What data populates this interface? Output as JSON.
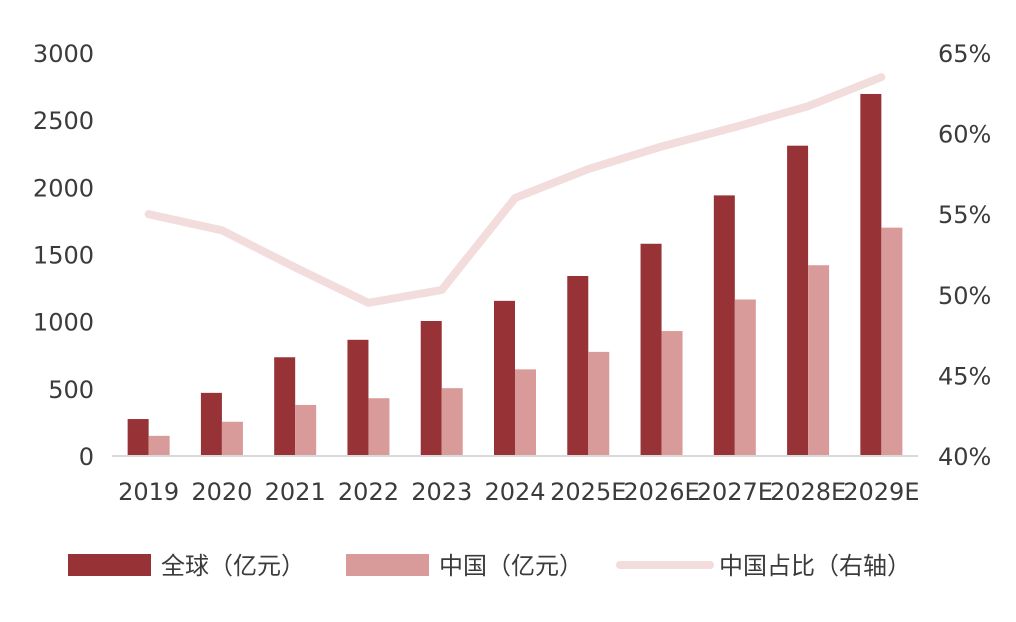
{
  "chart_data": {
    "type": "bar",
    "categories": [
      "2019",
      "2020",
      "2021",
      "2022",
      "2023",
      "2024",
      "2025E",
      "2026E",
      "2027E",
      "2028E",
      "2029E"
    ],
    "series": [
      {
        "name": "全球（亿元）",
        "kind": "bar",
        "axis": "left",
        "color": "#973236",
        "values": [
          275,
          470,
          735,
          865,
          1005,
          1155,
          1340,
          1580,
          1940,
          2310,
          2695
        ]
      },
      {
        "name": "中国（亿元）",
        "kind": "bar",
        "axis": "left",
        "color": "#d99a9a",
        "values": [
          150,
          255,
          380,
          430,
          505,
          645,
          775,
          930,
          1165,
          1420,
          1700
        ]
      },
      {
        "name": "中国占比（右轴）",
        "kind": "line",
        "axis": "right",
        "color": "#f2dcdc",
        "values": [
          0.55,
          0.54,
          0.517,
          0.495,
          0.503,
          0.56,
          0.578,
          0.592,
          0.604,
          0.617,
          0.635
        ]
      }
    ],
    "y_left": {
      "min": 0,
      "max": 3000,
      "ticks": [
        "0",
        "500",
        "1000",
        "1500",
        "2000",
        "2500",
        "3000"
      ]
    },
    "y_right": {
      "min": 0.4,
      "max": 0.65,
      "ticks": [
        "40%",
        "45%",
        "50%",
        "55%",
        "60%",
        "65%"
      ]
    },
    "grid": false,
    "legend_position": "bottom"
  }
}
